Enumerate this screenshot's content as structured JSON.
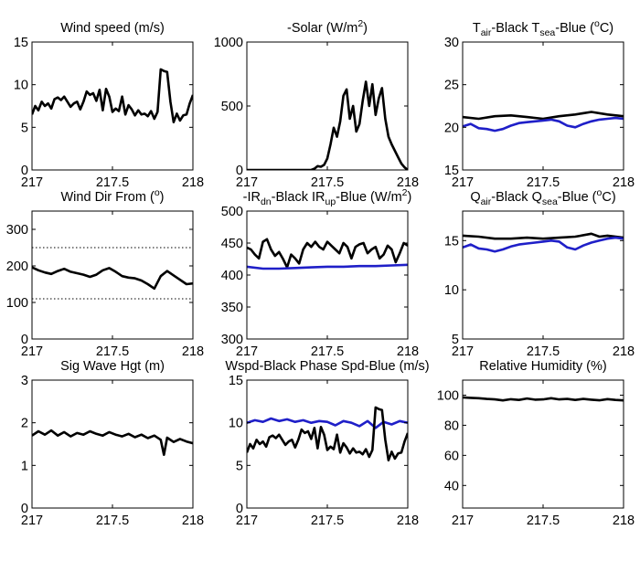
{
  "chart_data": [
    {
      "type": "line",
      "title_parts": [
        {
          "t": "Wind speed (m/s)"
        }
      ],
      "x_ticks": [
        "217",
        "217.5",
        "218"
      ],
      "y_ticks": [
        "0",
        "5",
        "10",
        "15"
      ],
      "xlim": [
        217,
        218
      ],
      "ylim": [
        0,
        15
      ],
      "grid": false,
      "series": [
        {
          "color": "#000000",
          "x": [
            217.0,
            217.02,
            217.04,
            217.06,
            217.08,
            217.1,
            217.12,
            217.14,
            217.16,
            217.18,
            217.2,
            217.22,
            217.24,
            217.26,
            217.28,
            217.3,
            217.32,
            217.34,
            217.36,
            217.38,
            217.4,
            217.42,
            217.44,
            217.46,
            217.48,
            217.5,
            217.52,
            217.54,
            217.56,
            217.58,
            217.6,
            217.62,
            217.64,
            217.66,
            217.68,
            217.7,
            217.72,
            217.74,
            217.76,
            217.78,
            217.8,
            217.82,
            217.84,
            217.86,
            217.88,
            217.9,
            217.92,
            217.94,
            217.96,
            217.98,
            218.0
          ],
          "y": [
            6.5,
            7.5,
            7.0,
            8.0,
            7.5,
            7.8,
            7.2,
            8.3,
            8.5,
            8.2,
            8.6,
            8.0,
            7.4,
            7.8,
            8.0,
            7.1,
            8.0,
            9.2,
            8.8,
            9.0,
            8.1,
            9.4,
            7.0,
            9.5,
            8.6,
            6.8,
            7.2,
            6.9,
            8.6,
            6.5,
            7.6,
            7.1,
            6.4,
            7.0,
            6.5,
            6.6,
            6.3,
            6.9,
            6.0,
            6.8,
            11.8,
            11.6,
            11.5,
            8.0,
            5.6,
            6.6,
            5.8,
            6.4,
            6.5,
            7.8,
            8.8
          ]
        }
      ]
    },
    {
      "type": "line",
      "title_parts": [
        {
          "t": "-Solar (W/m"
        },
        {
          "t": "2",
          "s": "sup"
        },
        {
          "t": ")"
        }
      ],
      "x_ticks": [
        "217",
        "217.5",
        "218"
      ],
      "y_ticks": [
        "0",
        "500",
        "1000"
      ],
      "xlim": [
        217,
        218
      ],
      "ylim": [
        0,
        1000
      ],
      "grid": false,
      "series": [
        {
          "color": "#000000",
          "x": [
            217.0,
            217.4,
            217.42,
            217.44,
            217.46,
            217.48,
            217.5,
            217.52,
            217.54,
            217.56,
            217.58,
            217.6,
            217.62,
            217.64,
            217.66,
            217.68,
            217.7,
            217.72,
            217.74,
            217.76,
            217.78,
            217.8,
            217.82,
            217.84,
            217.86,
            217.88,
            217.9,
            217.92,
            217.94,
            217.96,
            217.98,
            218.0
          ],
          "y": [
            0,
            0,
            10,
            30,
            25,
            40,
            90,
            200,
            330,
            260,
            380,
            580,
            630,
            400,
            500,
            300,
            360,
            540,
            690,
            500,
            670,
            430,
            560,
            640,
            400,
            260,
            200,
            150,
            100,
            50,
            20,
            0
          ]
        }
      ]
    },
    {
      "type": "line",
      "title_parts": [
        {
          "t": "T"
        },
        {
          "t": "air",
          "s": "sub"
        },
        {
          "t": "-Black  T"
        },
        {
          "t": "sea",
          "s": "sub"
        },
        {
          "t": "-Blue ("
        },
        {
          "t": "o",
          "s": "sup"
        },
        {
          "t": "C)"
        }
      ],
      "x_ticks": [
        "217",
        "217.5",
        "218"
      ],
      "y_ticks": [
        "15",
        "20",
        "25",
        "30"
      ],
      "xlim": [
        217,
        218
      ],
      "ylim": [
        15,
        30
      ],
      "grid": false,
      "series": [
        {
          "color": "#000000",
          "x": [
            217.0,
            217.1,
            217.2,
            217.3,
            217.4,
            217.5,
            217.6,
            217.7,
            217.8,
            217.9,
            218.0
          ],
          "y": [
            21.2,
            21.0,
            21.3,
            21.4,
            21.2,
            21.0,
            21.3,
            21.5,
            21.8,
            21.5,
            21.3
          ]
        },
        {
          "color": "#1f1fc8",
          "x": [
            217.0,
            217.05,
            217.1,
            217.15,
            217.2,
            217.25,
            217.3,
            217.35,
            217.4,
            217.45,
            217.5,
            217.55,
            217.6,
            217.65,
            217.7,
            217.75,
            217.8,
            217.85,
            217.9,
            217.95,
            218.0
          ],
          "y": [
            20.1,
            20.4,
            19.9,
            19.8,
            19.6,
            19.8,
            20.2,
            20.5,
            20.6,
            20.7,
            20.8,
            20.9,
            20.7,
            20.2,
            20.0,
            20.4,
            20.7,
            20.9,
            21.0,
            21.1,
            21.0
          ]
        }
      ]
    },
    {
      "type": "line",
      "title_parts": [
        {
          "t": "Wind Dir From ("
        },
        {
          "t": "o",
          "s": "sup"
        },
        {
          "t": ")"
        }
      ],
      "x_ticks": [
        "217",
        "217.5",
        "218"
      ],
      "y_ticks": [
        "0",
        "100",
        "200",
        "300"
      ],
      "xlim": [
        217,
        218
      ],
      "ylim": [
        0,
        350
      ],
      "grid": false,
      "ref_lines": [
        250,
        110
      ],
      "series": [
        {
          "color": "#000000",
          "x": [
            217.0,
            217.04,
            217.08,
            217.12,
            217.16,
            217.2,
            217.24,
            217.28,
            217.32,
            217.36,
            217.4,
            217.44,
            217.48,
            217.52,
            217.56,
            217.6,
            217.64,
            217.68,
            217.72,
            217.76,
            217.8,
            217.84,
            217.88,
            217.92,
            217.96,
            218.0
          ],
          "y": [
            196,
            188,
            182,
            178,
            186,
            192,
            184,
            180,
            176,
            170,
            176,
            188,
            194,
            184,
            172,
            168,
            166,
            160,
            150,
            138,
            172,
            186,
            174,
            162,
            150,
            152
          ]
        }
      ]
    },
    {
      "type": "line",
      "title_parts": [
        {
          "t": "-IR"
        },
        {
          "t": "dn",
          "s": "sub"
        },
        {
          "t": "-Black  IR"
        },
        {
          "t": "up",
          "s": "sub"
        },
        {
          "t": "-Blue (W/m"
        },
        {
          "t": "2",
          "s": "sup"
        },
        {
          "t": ")"
        }
      ],
      "x_ticks": [
        "217",
        "217.5",
        "218"
      ],
      "y_ticks": [
        "300",
        "350",
        "400",
        "450",
        "500"
      ],
      "xlim": [
        217,
        218
      ],
      "ylim": [
        300,
        500
      ],
      "grid": false,
      "series": [
        {
          "color": "#000000",
          "x": [
            217.0,
            217.025,
            217.05,
            217.075,
            217.1,
            217.125,
            217.15,
            217.175,
            217.2,
            217.225,
            217.25,
            217.275,
            217.3,
            217.325,
            217.35,
            217.375,
            217.4,
            217.425,
            217.45,
            217.475,
            217.5,
            217.525,
            217.55,
            217.575,
            217.6,
            217.625,
            217.65,
            217.675,
            217.7,
            217.725,
            217.75,
            217.775,
            217.8,
            217.825,
            217.85,
            217.875,
            217.9,
            217.925,
            217.95,
            217.975,
            218.0
          ],
          "y": [
            443,
            440,
            432,
            426,
            452,
            456,
            440,
            430,
            436,
            425,
            412,
            432,
            426,
            418,
            440,
            450,
            444,
            452,
            444,
            440,
            452,
            446,
            440,
            434,
            450,
            444,
            426,
            444,
            448,
            450,
            434,
            440,
            444,
            426,
            432,
            446,
            440,
            420,
            434,
            450,
            446
          ]
        },
        {
          "color": "#1f1fc8",
          "x": [
            217.0,
            217.1,
            217.2,
            217.3,
            217.4,
            217.5,
            217.6,
            217.7,
            217.8,
            217.9,
            218.0
          ],
          "y": [
            413,
            410,
            410,
            411,
            412,
            413,
            413,
            414,
            414,
            415,
            416
          ]
        }
      ]
    },
    {
      "type": "line",
      "title_parts": [
        {
          "t": "Q"
        },
        {
          "t": "air",
          "s": "sub"
        },
        {
          "t": "-Black  Q"
        },
        {
          "t": "sea",
          "s": "sub"
        },
        {
          "t": "-Blue ("
        },
        {
          "t": "o",
          "s": "sup"
        },
        {
          "t": "C)"
        }
      ],
      "x_ticks": [
        "217",
        "217.5",
        "218"
      ],
      "y_ticks": [
        "5",
        "10",
        "15"
      ],
      "xlim": [
        217,
        218
      ],
      "ylim": [
        5,
        18
      ],
      "grid": false,
      "series": [
        {
          "color": "#000000",
          "x": [
            217.0,
            217.1,
            217.2,
            217.3,
            217.4,
            217.5,
            217.6,
            217.7,
            217.8,
            217.85,
            217.9,
            218.0
          ],
          "y": [
            15.5,
            15.4,
            15.2,
            15.2,
            15.3,
            15.2,
            15.3,
            15.4,
            15.7,
            15.4,
            15.5,
            15.3
          ]
        },
        {
          "color": "#1f1fc8",
          "x": [
            217.0,
            217.05,
            217.1,
            217.15,
            217.2,
            217.25,
            217.3,
            217.35,
            217.4,
            217.45,
            217.5,
            217.55,
            217.6,
            217.65,
            217.7,
            217.75,
            217.8,
            217.85,
            217.9,
            217.95,
            218.0
          ],
          "y": [
            14.3,
            14.6,
            14.2,
            14.1,
            13.9,
            14.1,
            14.4,
            14.6,
            14.7,
            14.8,
            14.9,
            15.0,
            14.9,
            14.3,
            14.1,
            14.5,
            14.8,
            15.0,
            15.2,
            15.3,
            15.2
          ]
        }
      ]
    },
    {
      "type": "line",
      "title_parts": [
        {
          "t": "Sig Wave Hgt (m)"
        }
      ],
      "x_ticks": [
        "217",
        "217.5",
        "218"
      ],
      "y_ticks": [
        "0",
        "1",
        "2",
        "3"
      ],
      "xlim": [
        217,
        218
      ],
      "ylim": [
        0,
        3
      ],
      "grid": false,
      "series": [
        {
          "color": "#000000",
          "x": [
            217.0,
            217.04,
            217.08,
            217.12,
            217.16,
            217.2,
            217.24,
            217.28,
            217.32,
            217.36,
            217.4,
            217.44,
            217.48,
            217.52,
            217.56,
            217.6,
            217.64,
            217.68,
            217.72,
            217.76,
            217.8,
            217.82,
            217.84,
            217.88,
            217.92,
            217.96,
            218.0
          ],
          "y": [
            1.7,
            1.8,
            1.72,
            1.82,
            1.7,
            1.78,
            1.68,
            1.76,
            1.72,
            1.8,
            1.74,
            1.7,
            1.78,
            1.72,
            1.68,
            1.74,
            1.66,
            1.72,
            1.64,
            1.7,
            1.6,
            1.25,
            1.65,
            1.55,
            1.62,
            1.56,
            1.52
          ]
        }
      ]
    },
    {
      "type": "line",
      "title_parts": [
        {
          "t": "Wspd-Black  Phase Spd-Blue (m/s)"
        }
      ],
      "x_ticks": [
        "217",
        "217.5",
        "218"
      ],
      "y_ticks": [
        "0",
        "5",
        "10",
        "15"
      ],
      "xlim": [
        217,
        218
      ],
      "ylim": [
        0,
        15
      ],
      "grid": false,
      "series": [
        {
          "color": "#1f1fc8",
          "x": [
            217.0,
            217.05,
            217.1,
            217.15,
            217.2,
            217.25,
            217.3,
            217.35,
            217.4,
            217.45,
            217.5,
            217.55,
            217.6,
            217.65,
            217.7,
            217.75,
            217.8,
            217.85,
            217.9,
            217.95,
            218.0
          ],
          "y": [
            10.0,
            10.3,
            10.1,
            10.5,
            10.2,
            10.4,
            10.1,
            10.3,
            10.0,
            10.2,
            10.1,
            9.7,
            10.2,
            10.0,
            9.6,
            10.2,
            9.4,
            10.1,
            9.8,
            10.2,
            10.0
          ]
        },
        {
          "color": "#000000",
          "x": [
            217.0,
            217.02,
            217.04,
            217.06,
            217.08,
            217.1,
            217.12,
            217.14,
            217.16,
            217.18,
            217.2,
            217.22,
            217.24,
            217.26,
            217.28,
            217.3,
            217.32,
            217.34,
            217.36,
            217.38,
            217.4,
            217.42,
            217.44,
            217.46,
            217.48,
            217.5,
            217.52,
            217.54,
            217.56,
            217.58,
            217.6,
            217.62,
            217.64,
            217.66,
            217.68,
            217.7,
            217.72,
            217.74,
            217.76,
            217.78,
            217.8,
            217.82,
            217.84,
            217.86,
            217.88,
            217.9,
            217.92,
            217.94,
            217.96,
            217.98,
            218.0
          ],
          "y": [
            6.5,
            7.5,
            7.0,
            8.0,
            7.5,
            7.8,
            7.2,
            8.3,
            8.5,
            8.2,
            8.6,
            8.0,
            7.4,
            7.8,
            8.0,
            7.1,
            8.0,
            9.2,
            8.8,
            9.0,
            8.1,
            9.4,
            7.0,
            9.5,
            8.6,
            6.8,
            7.2,
            6.9,
            8.6,
            6.5,
            7.6,
            7.1,
            6.4,
            7.0,
            6.5,
            6.6,
            6.3,
            6.9,
            6.0,
            6.8,
            11.8,
            11.6,
            11.5,
            8.0,
            5.6,
            6.6,
            5.8,
            6.4,
            6.5,
            7.8,
            8.8
          ]
        }
      ]
    },
    {
      "type": "line",
      "title_parts": [
        {
          "t": "Relative Humidity (%)"
        }
      ],
      "x_ticks": [
        "217",
        "217.5",
        "218"
      ],
      "y_ticks": [
        "40",
        "60",
        "80",
        "100"
      ],
      "xlim": [
        217,
        218
      ],
      "ylim": [
        25,
        110
      ],
      "grid": false,
      "series": [
        {
          "color": "#000000",
          "x": [
            217.0,
            217.05,
            217.1,
            217.15,
            217.2,
            217.25,
            217.3,
            217.35,
            217.4,
            217.45,
            217.5,
            217.55,
            217.6,
            217.65,
            217.7,
            217.75,
            217.8,
            217.85,
            217.9,
            217.95,
            218.0
          ],
          "y": [
            98.5,
            98.2,
            98.0,
            97.5,
            97.2,
            96.5,
            97.3,
            96.8,
            97.8,
            97.0,
            97.2,
            98.0,
            97.2,
            97.5,
            96.8,
            97.5,
            97.0,
            96.6,
            97.4,
            96.8,
            96.5
          ]
        }
      ]
    }
  ]
}
